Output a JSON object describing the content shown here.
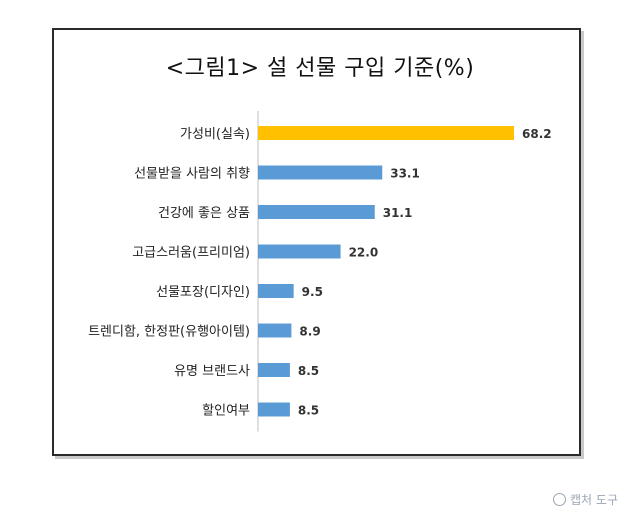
{
  "chart_data": {
    "type": "bar",
    "orientation": "horizontal",
    "title": "<그림1> 설 선물 구입 기준(%)",
    "categories": [
      "가성비(실속)",
      "선물받을 사람의 취향",
      "건강에 좋은 상품",
      "고급스러움(프리미엄)",
      "선물포장(디자인)",
      "트렌디함, 한정판(유행아이템)",
      "유명 브랜드사",
      "할인여부"
    ],
    "values": [
      68.2,
      33.1,
      31.1,
      22.0,
      9.5,
      8.9,
      8.5,
      8.5
    ],
    "value_labels": [
      "68.2",
      "33.1",
      "31.1",
      "22.0",
      "9.5",
      "8.9",
      "8.5",
      "8.5"
    ],
    "highlight_color": "#FFC000",
    "bar_color": "#5B9BD5",
    "xlim": [
      0,
      70
    ],
    "grid": false
  },
  "watermark": {
    "text": "캡처 도구",
    "icon": "capture-tool-icon"
  }
}
